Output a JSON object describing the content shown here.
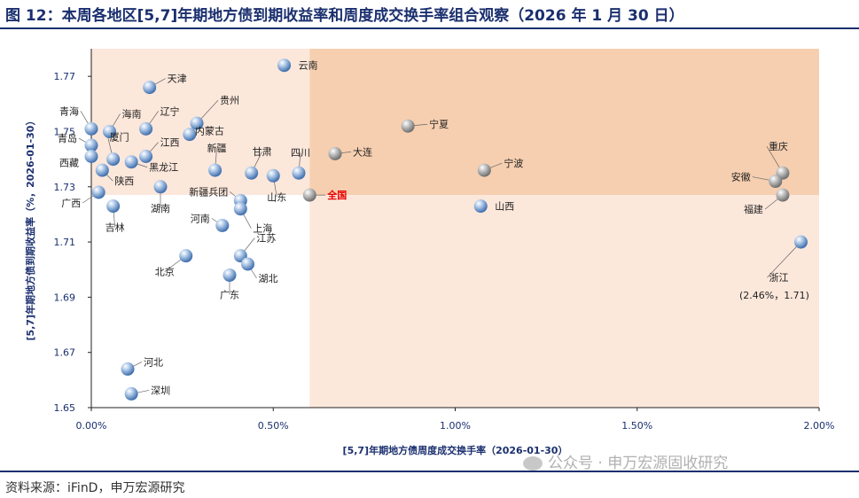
{
  "title": "图 12：本周各地区[5,7]年期地方债到期收益率和周度成交换手率组合观察（2026 年 1 月 30 日）",
  "source": "资料来源：iFinD，申万宏源研究",
  "watermark": "公众号 · 申万宏源固收研究",
  "colors": {
    "title": "#1a2f6e",
    "upper_right_quadrant": "#f6cfb0",
    "other_quadrants": "#fce7db",
    "highlight_label": "#e60000",
    "marker_blue": "#6a93c9",
    "marker_gray": "#9a9a9a"
  },
  "chart_data": {
    "type": "scatter",
    "xlabel": "[5,7]年期地方债周度成交换手率（2026-01-30）",
    "ylabel": "[5,7]年期地方债到期收益率（%，2026-01-30）",
    "xlim": [
      0,
      2.0
    ],
    "ylim": [
      1.65,
      1.78
    ],
    "x_unit": "%",
    "xticks": [
      "0.00%",
      "0.50%",
      "1.00%",
      "1.50%",
      "2.00%"
    ],
    "yticks": [
      "1.65",
      "1.67",
      "1.69",
      "1.71",
      "1.73",
      "1.75",
      "1.77"
    ],
    "quadrant_split": {
      "x": 0.6,
      "y": 1.727
    },
    "annotation": "(2.46%，1.71)",
    "points": [
      {
        "name": "云南",
        "x": 0.53,
        "y": 1.774
      },
      {
        "name": "天津",
        "x": 0.16,
        "y": 1.766
      },
      {
        "name": "海南",
        "x": 0.05,
        "y": 1.75
      },
      {
        "name": "青海",
        "x": 0.0,
        "y": 1.751
      },
      {
        "name": "辽宁",
        "x": 0.15,
        "y": 1.751
      },
      {
        "name": "贵州",
        "x": 0.29,
        "y": 1.753
      },
      {
        "name": "内蒙古",
        "x": 0.27,
        "y": 1.749
      },
      {
        "name": "宁夏",
        "x": 0.87,
        "y": 1.752
      },
      {
        "name": "厦门",
        "x": 0.06,
        "y": 1.74
      },
      {
        "name": "青岛",
        "x": 0.0,
        "y": 1.745
      },
      {
        "name": "江西",
        "x": 0.15,
        "y": 1.741
      },
      {
        "name": "黑龙江",
        "x": 0.11,
        "y": 1.739
      },
      {
        "name": "西藏",
        "x": 0.0,
        "y": 1.741
      },
      {
        "name": "新疆",
        "x": 0.34,
        "y": 1.736
      },
      {
        "name": "甘肃",
        "x": 0.44,
        "y": 1.735
      },
      {
        "name": "山东",
        "x": 0.5,
        "y": 1.734
      },
      {
        "name": "四川",
        "x": 0.57,
        "y": 1.735
      },
      {
        "name": "大连",
        "x": 0.67,
        "y": 1.742
      },
      {
        "name": "宁波",
        "x": 1.08,
        "y": 1.736
      },
      {
        "name": "陕西",
        "x": 0.03,
        "y": 1.736
      },
      {
        "name": "湖南",
        "x": 0.19,
        "y": 1.73
      },
      {
        "name": "广西",
        "x": 0.02,
        "y": 1.728
      },
      {
        "name": "吉林",
        "x": 0.06,
        "y": 1.723
      },
      {
        "name": "新疆兵团",
        "x": 0.41,
        "y": 1.725
      },
      {
        "name": "全国",
        "x": 0.6,
        "y": 1.727
      },
      {
        "name": "山西",
        "x": 1.07,
        "y": 1.723
      },
      {
        "name": "河南",
        "x": 0.36,
        "y": 1.716
      },
      {
        "name": "上海",
        "x": 0.41,
        "y": 1.722
      },
      {
        "name": "重庆",
        "x": 1.9,
        "y": 1.735
      },
      {
        "name": "安徽",
        "x": 1.88,
        "y": 1.732
      },
      {
        "name": "福建",
        "x": 1.9,
        "y": 1.727
      },
      {
        "name": "浙江",
        "x": 1.95,
        "y": 1.71
      },
      {
        "name": "北京",
        "x": 0.26,
        "y": 1.705
      },
      {
        "name": "江苏",
        "x": 0.41,
        "y": 1.705
      },
      {
        "name": "湖北",
        "x": 0.43,
        "y": 1.702
      },
      {
        "name": "广东",
        "x": 0.38,
        "y": 1.698
      },
      {
        "name": "河北",
        "x": 0.1,
        "y": 1.664
      },
      {
        "name": "深圳",
        "x": 0.11,
        "y": 1.655
      }
    ]
  }
}
